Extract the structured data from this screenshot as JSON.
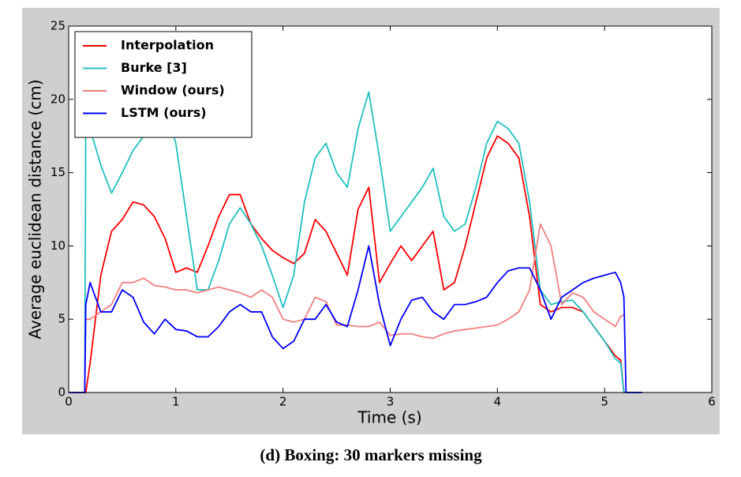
{
  "chart_data": {
    "type": "line",
    "caption": "(d) Boxing: 30 markers missing",
    "x_label": "Time (s)",
    "y_label": "Average euclidean distance (cm)",
    "xlim": [
      0,
      6
    ],
    "xticks": [
      0,
      1,
      2,
      3,
      4,
      5,
      6
    ],
    "ylim": [
      0,
      25
    ],
    "yticks": [
      0,
      5,
      10,
      15,
      20,
      25
    ],
    "legend": "upper left",
    "x": [
      0,
      0.15,
      0.16,
      0.2,
      0.3,
      0.4,
      0.5,
      0.6,
      0.7,
      0.8,
      0.9,
      1.0,
      1.1,
      1.2,
      1.3,
      1.4,
      1.5,
      1.6,
      1.7,
      1.8,
      1.9,
      2.0,
      2.1,
      2.2,
      2.3,
      2.4,
      2.5,
      2.6,
      2.7,
      2.8,
      2.9,
      3.0,
      3.1,
      3.2,
      3.3,
      3.4,
      3.5,
      3.6,
      3.7,
      3.8,
      3.9,
      4.0,
      4.1,
      4.2,
      4.3,
      4.4,
      4.5,
      4.6,
      4.7,
      4.8,
      4.9,
      5.0,
      5.1,
      5.15,
      5.18,
      5.2,
      5.35
    ],
    "series": [
      {
        "name": "Interpolation",
        "color": "#ff0000",
        "values": [
          0,
          0,
          0,
          2,
          8,
          11,
          11.8,
          13,
          12.8,
          12,
          10.5,
          8.2,
          8.5,
          8.2,
          10,
          12,
          13.5,
          13.5,
          11.5,
          10.5,
          9.7,
          9.2,
          8.8,
          9.5,
          11.8,
          11,
          9.5,
          8,
          12.5,
          14,
          7.5,
          8.8,
          10,
          9,
          10,
          11,
          7,
          7.5,
          10,
          13,
          16,
          17.5,
          17,
          16,
          12,
          6,
          5.5,
          5.8,
          5.8,
          5.5,
          4.5,
          3.5,
          2.5,
          2.2,
          0,
          0,
          0
        ]
      },
      {
        "name": "Burke [3]",
        "color": "#20c0c0",
        "values": [
          0,
          0,
          19,
          18,
          15.5,
          13.6,
          15,
          16.5,
          17.5,
          18.5,
          19.5,
          17,
          12,
          7,
          7,
          9,
          11.5,
          12.6,
          11.5,
          10,
          8,
          5.8,
          8,
          13,
          16,
          17,
          15,
          14,
          18,
          20.5,
          16,
          11,
          12,
          13,
          14,
          15.3,
          12,
          11,
          11.5,
          14,
          17,
          18.5,
          18,
          17,
          13,
          7,
          6,
          6.2,
          6.3,
          5.5,
          4.5,
          3.5,
          2.3,
          2,
          0,
          0,
          0
        ]
      },
      {
        "name": "Window (ours)",
        "color": "#f08080",
        "values": [
          0,
          0,
          5,
          5,
          5.5,
          6,
          7.5,
          7.5,
          7.8,
          7.3,
          7.2,
          7,
          7,
          6.8,
          7,
          7.2,
          7,
          6.8,
          6.5,
          7,
          6.5,
          5,
          4.8,
          5,
          6.5,
          6.2,
          4.6,
          4.6,
          4.5,
          4.5,
          4.8,
          3.9,
          4,
          4,
          3.8,
          3.7,
          4,
          4.2,
          4.3,
          4.4,
          4.5,
          4.6,
          5,
          5.5,
          7,
          11.5,
          10,
          6,
          6.8,
          6.5,
          5.5,
          5,
          4.5,
          5.2,
          5.3,
          null,
          null
        ]
      },
      {
        "name": "LSTM (ours)",
        "color": "#0000ff",
        "values": [
          0,
          0,
          6,
          7.5,
          5.5,
          5.5,
          7,
          6.5,
          4.8,
          4,
          5,
          4.3,
          4.2,
          3.8,
          3.8,
          4.5,
          5.5,
          6,
          5.5,
          5.5,
          3.8,
          3,
          3.5,
          5,
          5,
          6,
          4.8,
          4.5,
          7,
          10,
          6,
          3.2,
          5,
          6.3,
          6.5,
          5.5,
          5,
          6,
          6,
          6.2,
          6.5,
          7.5,
          8.3,
          8.5,
          8.5,
          7,
          5,
          6.5,
          7,
          7.5,
          7.8,
          8,
          8.2,
          7.5,
          6.5,
          0,
          0
        ]
      }
    ]
  }
}
